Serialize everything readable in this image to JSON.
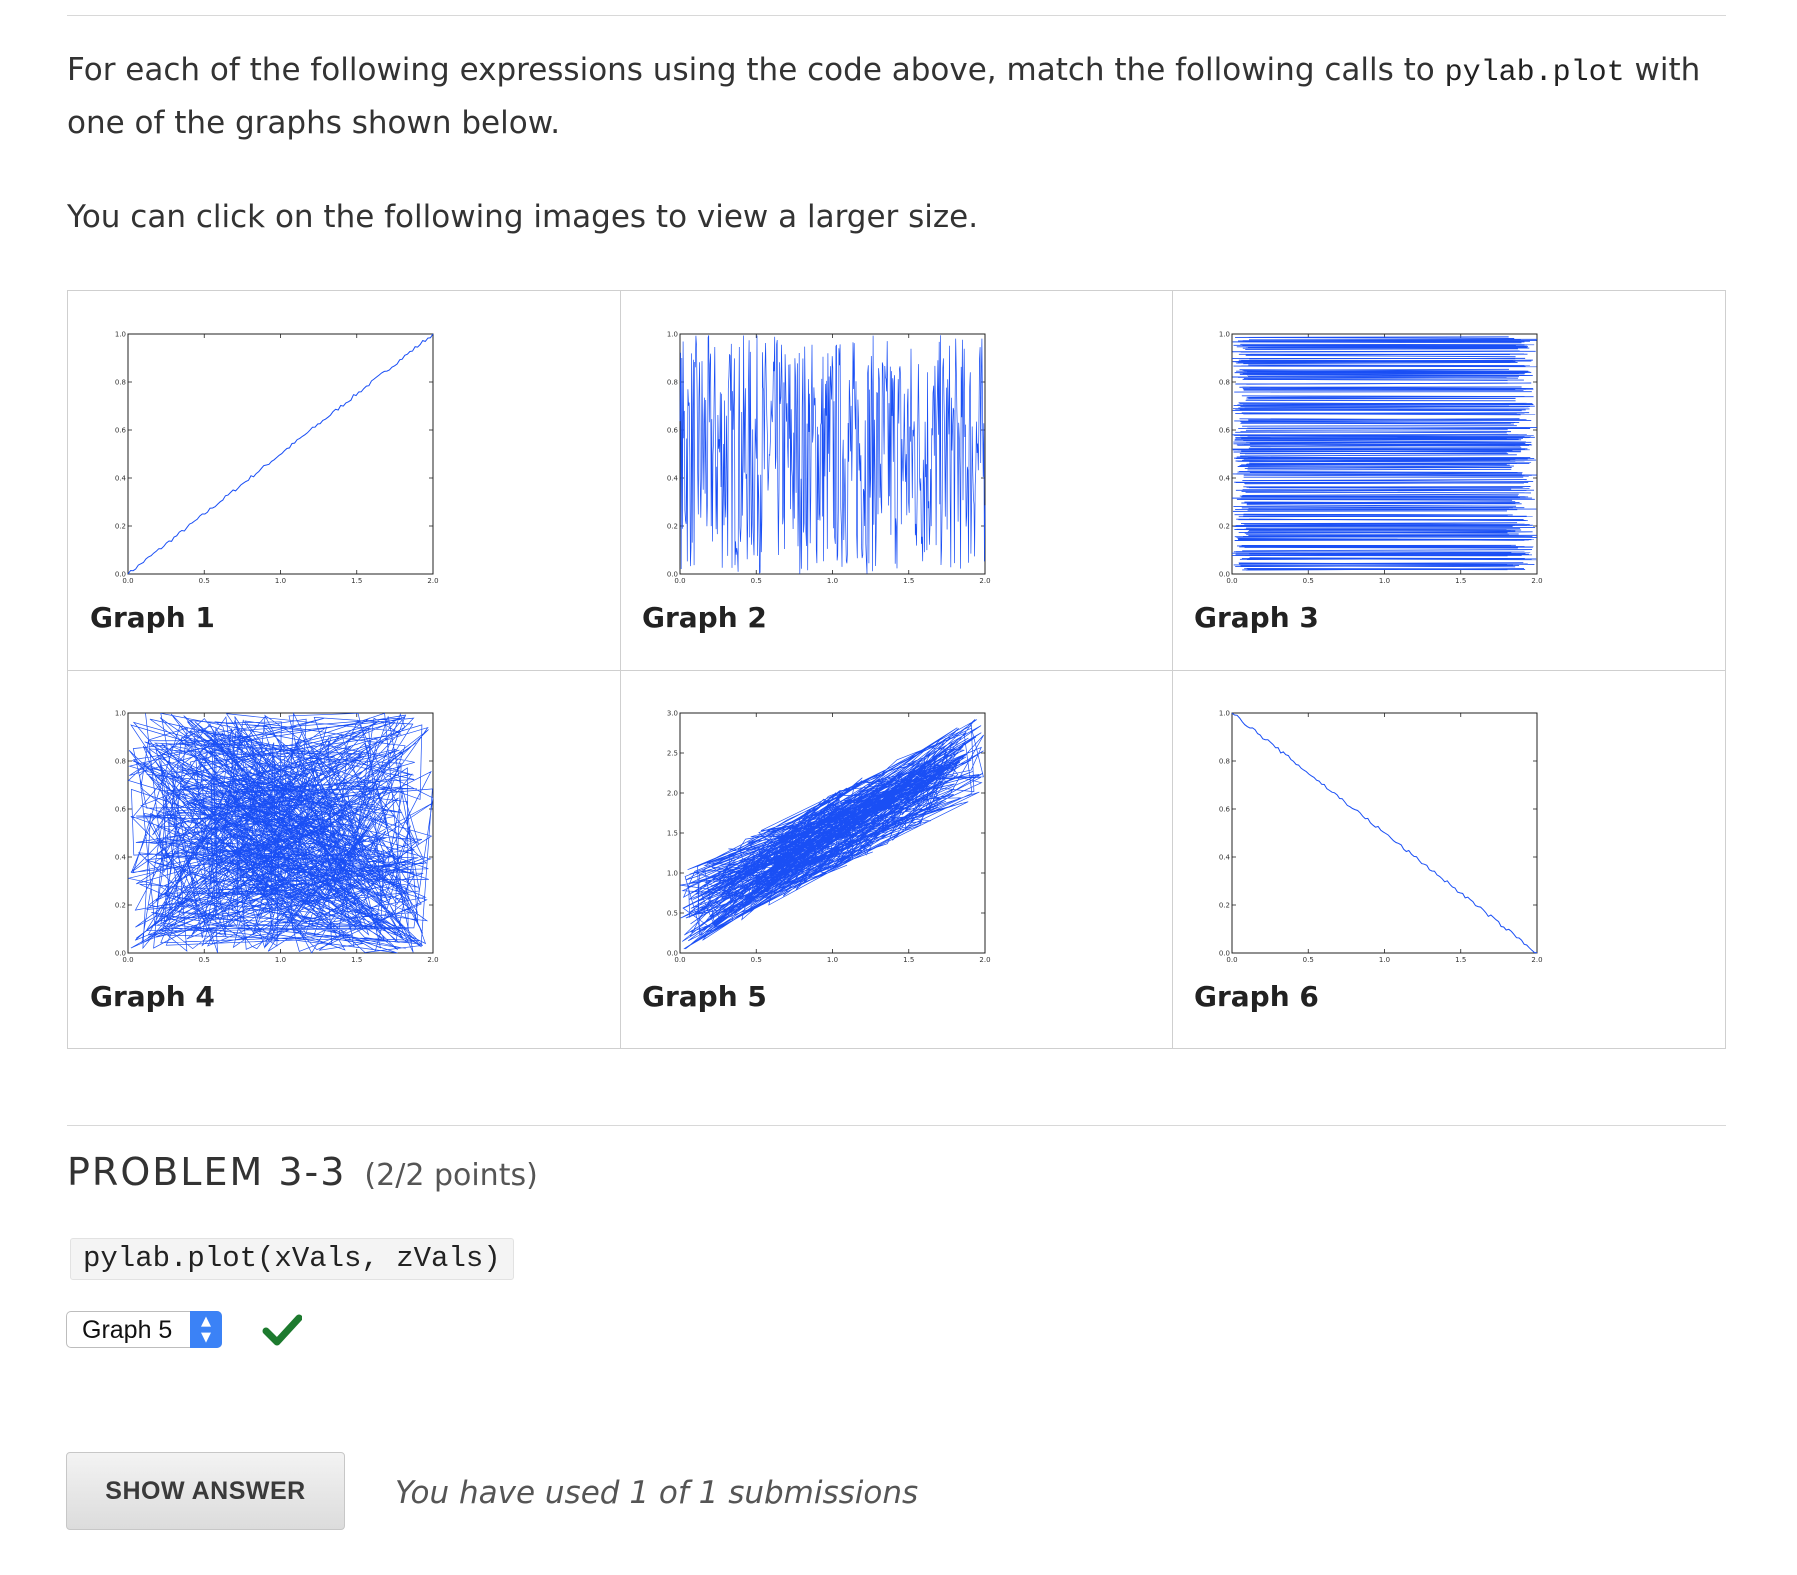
{
  "intro": {
    "before_code": "For each of the following expressions using the code above, match the following calls to ",
    "code": "pylab.plot",
    "after_code": " with one of the graphs shown below.",
    "click_note": "You can click on the following images to view a larger size."
  },
  "graphs": [
    {
      "label": "Graph 1",
      "pattern": "ascending-line",
      "yticks": [
        "1.0",
        "0.8",
        "0.6",
        "0.4",
        "0.2",
        "0.0"
      ]
    },
    {
      "label": "Graph 2",
      "pattern": "vertical-noise",
      "yticks": [
        "1.0",
        "0.8",
        "0.6",
        "0.4",
        "0.2",
        "0.0"
      ]
    },
    {
      "label": "Graph 3",
      "pattern": "horizontal-noise",
      "yticks": [
        "1.0",
        "0.8",
        "0.6",
        "0.4",
        "0.2",
        "0.0"
      ]
    },
    {
      "label": "Graph 4",
      "pattern": "scribble",
      "yticks": [
        "1.0",
        "0.8",
        "0.6",
        "0.4",
        "0.2",
        "0.0"
      ]
    },
    {
      "label": "Graph 5",
      "pattern": "noisy-band",
      "yticks": [
        "3.0",
        "2.5",
        "2.0",
        "1.5",
        "1.0",
        "0.5",
        "0.0"
      ]
    },
    {
      "label": "Graph 6",
      "pattern": "descending-line",
      "yticks": [
        "1.0",
        "0.8",
        "0.6",
        "0.4",
        "0.2",
        "0.0"
      ]
    }
  ],
  "xticks": [
    "0.0",
    "0.5",
    "1.0",
    "1.5",
    "2.0"
  ],
  "problem": {
    "title": "PROBLEM 3-3",
    "points": "(2/2 points)",
    "code": "pylab.plot(xVals, zVals)",
    "selected": "Graph 5",
    "status_icon": "check-icon",
    "show_answer": "SHOW ANSWER",
    "submissions": "You have used 1 of 1 submissions"
  },
  "colors": {
    "plot": "#1a4ff5",
    "check": "#1d7a2e",
    "select_accent": "#3b82f6"
  }
}
